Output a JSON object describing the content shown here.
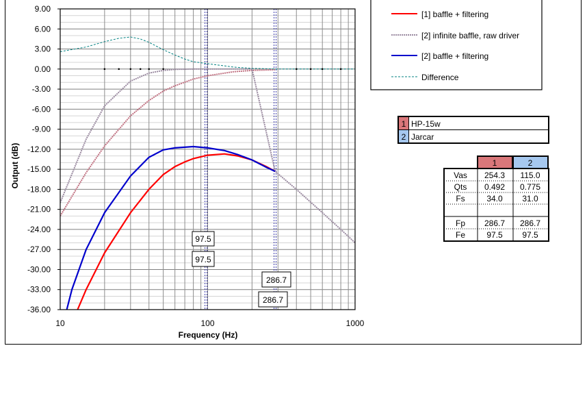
{
  "chart_data": {
    "type": "line",
    "xlabel": "Frequency (Hz)",
    "ylabel": "Output (dB)",
    "xscale": "log",
    "xlim": [
      10,
      1000
    ],
    "ylim": [
      -36,
      9
    ],
    "x_ticks": [
      "10",
      "100",
      "1000"
    ],
    "y_ticks": [
      "9.00",
      "6.00",
      "3.00",
      "0.00",
      "-3.00",
      "-6.00",
      "-9.00",
      "-12.00",
      "-15.00",
      "-18.00",
      "-21.00",
      "-24.00",
      "-27.00",
      "-30.00",
      "-33.00",
      "-36.00"
    ],
    "grid": true,
    "legend_position": "top-right",
    "vertical_markers": [
      97.5,
      286.7
    ],
    "marker_labels": [
      "97.5",
      "97.5",
      "286.7",
      "286.7"
    ],
    "series": [
      {
        "name": "[1] baffle + filtering",
        "color": "#ff0000",
        "x": [
          12,
          15,
          20,
          30,
          40,
          50,
          60,
          70,
          80,
          100,
          130,
          160,
          200,
          250,
          286.7
        ],
        "y": [
          -38,
          -33,
          -27.5,
          -21.5,
          -18,
          -15.8,
          -14.6,
          -13.9,
          -13.4,
          -12.9,
          -12.7,
          -13,
          -13.6,
          -14.6,
          -15.3
        ]
      },
      {
        "name": "[2] infinite baffle, raw driver",
        "color": "#9a8aa0",
        "x": [
          10,
          15,
          20,
          30,
          40,
          50,
          60,
          80,
          100,
          150,
          200,
          286.7,
          400,
          600,
          800,
          1000
        ],
        "y": [
          -20,
          -10.5,
          -5.5,
          -1.8,
          -0.6,
          -0.2,
          -0.05,
          0,
          0,
          0,
          0,
          -15.3,
          -18,
          -21.5,
          -24,
          -26
        ]
      },
      {
        "name": "[2] baffle + filtering",
        "color": "#0000cc",
        "x": [
          10.5,
          12,
          15,
          20,
          30,
          40,
          50,
          60,
          80,
          100,
          130,
          160,
          200,
          250,
          286.7
        ],
        "y": [
          -38,
          -33,
          -27,
          -21.5,
          -16,
          -13.2,
          -12.1,
          -11.8,
          -11.6,
          -11.8,
          -12.2,
          -12.8,
          -13.6,
          -14.7,
          -15.3
        ]
      },
      {
        "name": "Difference",
        "color": "#008080",
        "x": [
          10,
          15,
          20,
          25,
          30,
          35,
          40,
          50,
          60,
          70,
          80,
          100,
          150,
          200,
          300,
          500,
          1000
        ],
        "y": [
          2.6,
          3.3,
          4.1,
          4.6,
          4.8,
          4.5,
          4.0,
          2.9,
          2.1,
          1.5,
          1.1,
          0.8,
          0.3,
          0.1,
          0,
          0,
          0
        ]
      }
    ],
    "extra_curve": {
      "name": "[1] infinite baffle, raw driver (unlabeled)",
      "color": "#c07080",
      "x": [
        10,
        15,
        20,
        30,
        40,
        50,
        60,
        80,
        100,
        150,
        200,
        286.7
      ],
      "y": [
        -22,
        -15.5,
        -11.5,
        -7,
        -4.7,
        -3.3,
        -2.5,
        -1.5,
        -1,
        -0.4,
        -0.2,
        -0.1
      ]
    }
  },
  "legend": {
    "items": [
      {
        "label": "[1] baffle + filtering",
        "color": "#ff0000",
        "dash": "solid"
      },
      {
        "label": "[2] infinite baffle, raw driver",
        "color": "#9a8aa0",
        "dash": "dotted"
      },
      {
        "label": "[2] baffle + filtering",
        "color": "#0000cc",
        "dash": "solid"
      },
      {
        "label": "Difference",
        "color": "#008080",
        "dash": "dashed"
      }
    ]
  },
  "drivers": [
    {
      "num": "1",
      "name": "HP-15w",
      "color": "#d9777a"
    },
    {
      "num": "2",
      "name": "Jarcar",
      "color": "#a6c8ef"
    }
  ],
  "params": {
    "col_headers": [
      "1",
      "2"
    ],
    "rows": [
      {
        "label": "Vas",
        "v1": "254.3",
        "v2": "115.0"
      },
      {
        "label": "Qts",
        "v1": "0.492",
        "v2": "0.775"
      },
      {
        "label": "Fs",
        "v1": "34.0",
        "v2": "31.0"
      },
      {
        "label": "Fp",
        "v1": "286.7",
        "v2": "286.7"
      },
      {
        "label": "Fe",
        "v1": "97.5",
        "v2": "97.5"
      }
    ]
  }
}
